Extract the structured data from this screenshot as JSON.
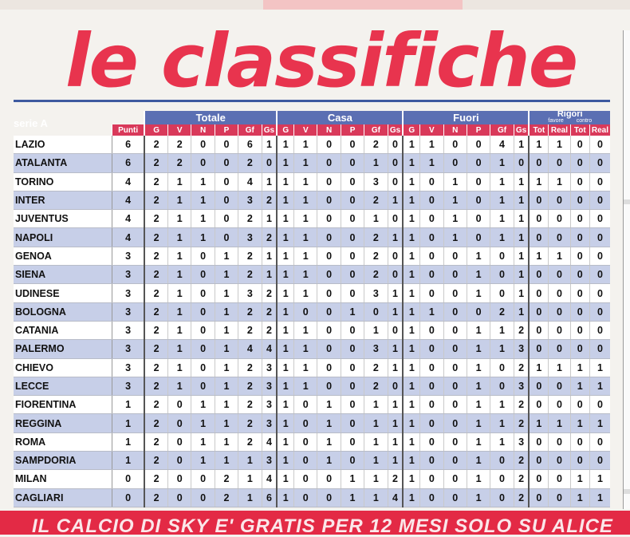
{
  "headline": "le classifiche",
  "serie": "serie A",
  "groups": {
    "totale": "Totale",
    "casa": "Casa",
    "fuori": "Fuori",
    "rigori": "Rigori",
    "favore": "favore",
    "contro": "contro"
  },
  "columns": {
    "punti": "Punti",
    "g": "G",
    "v": "V",
    "n": "N",
    "p": "P",
    "gf": "Gf",
    "gs": "Gs",
    "tot": "Tot",
    "real": "Real"
  },
  "rows": [
    {
      "team": "LAZIO",
      "vals": [
        6,
        2,
        2,
        0,
        0,
        6,
        1,
        1,
        1,
        0,
        0,
        2,
        0,
        1,
        1,
        0,
        0,
        4,
        1,
        1,
        1,
        0,
        0
      ]
    },
    {
      "team": "ATALANTA",
      "vals": [
        6,
        2,
        2,
        0,
        0,
        2,
        0,
        1,
        1,
        0,
        0,
        1,
        0,
        1,
        1,
        0,
        0,
        1,
        0,
        0,
        0,
        0,
        0
      ]
    },
    {
      "team": "TORINO",
      "vals": [
        4,
        2,
        1,
        1,
        0,
        4,
        1,
        1,
        1,
        0,
        0,
        3,
        0,
        1,
        0,
        1,
        0,
        1,
        1,
        1,
        1,
        0,
        0
      ]
    },
    {
      "team": "INTER",
      "vals": [
        4,
        2,
        1,
        1,
        0,
        3,
        2,
        1,
        1,
        0,
        0,
        2,
        1,
        1,
        0,
        1,
        0,
        1,
        1,
        0,
        0,
        0,
        0
      ]
    },
    {
      "team": "JUVENTUS",
      "vals": [
        4,
        2,
        1,
        1,
        0,
        2,
        1,
        1,
        1,
        0,
        0,
        1,
        0,
        1,
        0,
        1,
        0,
        1,
        1,
        0,
        0,
        0,
        0
      ]
    },
    {
      "team": "NAPOLI",
      "vals": [
        4,
        2,
        1,
        1,
        0,
        3,
        2,
        1,
        1,
        0,
        0,
        2,
        1,
        1,
        0,
        1,
        0,
        1,
        1,
        0,
        0,
        0,
        0
      ]
    },
    {
      "team": "GENOA",
      "vals": [
        3,
        2,
        1,
        0,
        1,
        2,
        1,
        1,
        1,
        0,
        0,
        2,
        0,
        1,
        0,
        0,
        1,
        0,
        1,
        1,
        1,
        0,
        0
      ]
    },
    {
      "team": "SIENA",
      "vals": [
        3,
        2,
        1,
        0,
        1,
        2,
        1,
        1,
        1,
        0,
        0,
        2,
        0,
        1,
        0,
        0,
        1,
        0,
        1,
        0,
        0,
        0,
        0
      ]
    },
    {
      "team": "UDINESE",
      "vals": [
        3,
        2,
        1,
        0,
        1,
        3,
        2,
        1,
        1,
        0,
        0,
        3,
        1,
        1,
        0,
        0,
        1,
        0,
        1,
        0,
        0,
        0,
        0
      ]
    },
    {
      "team": "BOLOGNA",
      "vals": [
        3,
        2,
        1,
        0,
        1,
        2,
        2,
        1,
        0,
        0,
        1,
        0,
        1,
        1,
        1,
        0,
        0,
        2,
        1,
        0,
        0,
        0,
        0
      ]
    },
    {
      "team": "CATANIA",
      "vals": [
        3,
        2,
        1,
        0,
        1,
        2,
        2,
        1,
        1,
        0,
        0,
        1,
        0,
        1,
        0,
        0,
        1,
        1,
        2,
        0,
        0,
        0,
        0
      ]
    },
    {
      "team": "PALERMO",
      "vals": [
        3,
        2,
        1,
        0,
        1,
        4,
        4,
        1,
        1,
        0,
        0,
        3,
        1,
        1,
        0,
        0,
        1,
        1,
        3,
        0,
        0,
        0,
        0
      ]
    },
    {
      "team": "CHIEVO",
      "vals": [
        3,
        2,
        1,
        0,
        1,
        2,
        3,
        1,
        1,
        0,
        0,
        2,
        1,
        1,
        0,
        0,
        1,
        0,
        2,
        1,
        1,
        1,
        1
      ]
    },
    {
      "team": "LECCE",
      "vals": [
        3,
        2,
        1,
        0,
        1,
        2,
        3,
        1,
        1,
        0,
        0,
        2,
        0,
        1,
        0,
        0,
        1,
        0,
        3,
        0,
        0,
        1,
        1
      ]
    },
    {
      "team": "FIORENTINA",
      "vals": [
        1,
        2,
        0,
        1,
        1,
        2,
        3,
        1,
        0,
        1,
        0,
        1,
        1,
        1,
        0,
        0,
        1,
        1,
        2,
        0,
        0,
        0,
        0
      ]
    },
    {
      "team": "REGGINA",
      "vals": [
        1,
        2,
        0,
        1,
        1,
        2,
        3,
        1,
        0,
        1,
        0,
        1,
        1,
        1,
        0,
        0,
        1,
        1,
        2,
        1,
        1,
        1,
        1
      ]
    },
    {
      "team": "ROMA",
      "vals": [
        1,
        2,
        0,
        1,
        1,
        2,
        4,
        1,
        0,
        1,
        0,
        1,
        1,
        1,
        0,
        0,
        1,
        1,
        3,
        0,
        0,
        0,
        0
      ]
    },
    {
      "team": "SAMPDORIA",
      "vals": [
        1,
        2,
        0,
        1,
        1,
        1,
        3,
        1,
        0,
        1,
        0,
        1,
        1,
        1,
        0,
        0,
        1,
        0,
        2,
        0,
        0,
        0,
        0
      ]
    },
    {
      "team": "MILAN",
      "vals": [
        0,
        2,
        0,
        0,
        2,
        1,
        4,
        1,
        0,
        0,
        1,
        1,
        2,
        1,
        0,
        0,
        1,
        0,
        2,
        0,
        0,
        1,
        1
      ]
    },
    {
      "team": "CAGLIARI",
      "vals": [
        0,
        2,
        0,
        0,
        2,
        1,
        6,
        1,
        0,
        0,
        1,
        1,
        4,
        1,
        0,
        0,
        1,
        0,
        2,
        0,
        0,
        1,
        1
      ]
    }
  ],
  "bottom_banner": "IL CALCIO DI SKY E' GRATIS PER 12 MESI SOLO SU ALICE"
}
